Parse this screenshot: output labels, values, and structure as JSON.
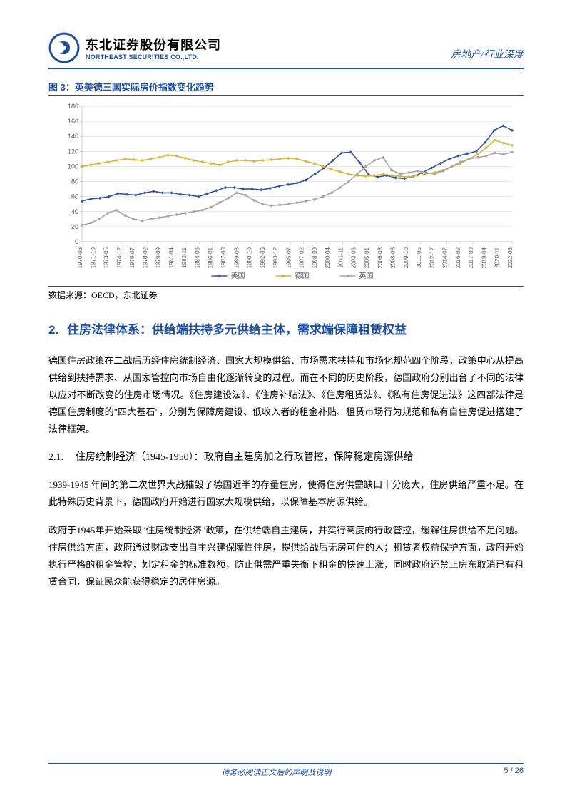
{
  "header": {
    "logo_cn": "东北证券股份有限公司",
    "logo_en": "NORTHEAST SECURITIES CO.,LTD.",
    "right": "房地产/行业深度"
  },
  "figure": {
    "title": "图 3：英美德三国实际房价指数变化趋势",
    "data_source": "数据来源：OECD，东北证券",
    "chart": {
      "type": "line",
      "ylim": [
        0,
        180
      ],
      "ytick_step": 20,
      "yticks": [
        "0",
        "20",
        "40",
        "60",
        "80",
        "100",
        "120",
        "140",
        "160",
        "180"
      ],
      "xlabels": [
        "1970-03",
        "1971-10",
        "1973-05",
        "1974-12",
        "1976-07",
        "1978-02",
        "1979-09",
        "1981-04",
        "1982-11",
        "1984-06",
        "1986-01",
        "1987-08",
        "1989-03",
        "1990-10",
        "1992-05",
        "1993-12",
        "1995-07",
        "1997-02",
        "1998-09",
        "2000-04",
        "2001-11",
        "2003-06",
        "2005-01",
        "2006-08",
        "2008-03",
        "2009-10",
        "2011-05",
        "2012-12",
        "2014-07",
        "2016-02",
        "2017-09",
        "2019-04",
        "2020-11",
        "2022-06"
      ],
      "grid_color": "#d9d9d9",
      "axis_color": "#bfbfbf",
      "background": "#ffffff",
      "series": [
        {
          "name": "美国",
          "color": "#2f5597",
          "marker": "diamond",
          "data": [
            54,
            57,
            58,
            60,
            64,
            63,
            62,
            65,
            67,
            65,
            65,
            63,
            62,
            60,
            64,
            68,
            72,
            72,
            70,
            70,
            69,
            71,
            74,
            76,
            78,
            82,
            90,
            98,
            108,
            118,
            119,
            105,
            89,
            86,
            88,
            85,
            84,
            87,
            92,
            98,
            104,
            110,
            114,
            117,
            120,
            132,
            148,
            154,
            148
          ]
        },
        {
          "name": "德国",
          "color": "#d4b83d",
          "marker": "circle",
          "data": [
            100,
            102,
            104,
            106,
            108,
            110,
            109,
            108,
            110,
            112,
            115,
            114,
            111,
            108,
            106,
            104,
            102,
            106,
            108,
            108,
            107,
            108,
            109,
            110,
            111,
            110,
            107,
            104,
            100,
            96,
            93,
            90,
            88,
            87,
            88,
            90,
            88,
            87,
            86,
            88,
            90,
            92,
            95,
            100,
            104,
            110,
            116,
            125,
            135,
            131,
            128
          ]
        },
        {
          "name": "英国",
          "color": "#a6a6a6",
          "marker": "circle",
          "data": [
            22,
            25,
            30,
            38,
            42,
            35,
            30,
            28,
            30,
            32,
            34,
            36,
            38,
            40,
            42,
            46,
            52,
            58,
            65,
            62,
            55,
            50,
            48,
            49,
            50,
            52,
            54,
            56,
            60,
            65,
            72,
            80,
            90,
            100,
            108,
            112,
            95,
            90,
            92,
            94,
            92,
            90,
            94,
            100,
            106,
            110,
            112,
            114,
            118,
            116,
            119
          ]
        }
      ],
      "legend": [
        "美国",
        "德国",
        "英国"
      ]
    }
  },
  "section": {
    "num": "2.",
    "title": "住房法律体系：供给端扶持多元供给主体，需求端保障租赁权益"
  },
  "body1": "德国住房政策在二战后历经住房统制经济、国家大规模供给、市场需求扶持和市场化规范四个阶段，政策中心从提高供给到扶持需求、从国家管控向市场自由化逐渐转变的过程。而在不同的历史阶段，德国政府分别出台了不同的法律以应对不断改变的住房市场情况。《住房建设法》、《住房补贴法》、《住房租赁法》、《私有住房促进法》这四部法律是德国住房制度的\"四大基石\"，分别为保障房建设、低收入者的租金补贴、租赁市场行为规范和私有自住房促进搭建了法律框架。",
  "subsection": {
    "num": "2.1.",
    "title": "住房统制经济（1945-1950）：政府自主建房加之行政管控，保障稳定房源供给"
  },
  "body2": "1939-1945 年间的第二次世界大战摧毁了德国近半的存量住房，使得住房供需缺口十分庞大，住房供给严重不足。在此特殊历史背景下，德国政府开始进行国家大规模供给，以保障基本房源供给。",
  "body3": "政府于1945年开始采取\"住房统制经济\"政策，在供给端自主建房，并实行高度的行政管控，缓解住房供给不足问题。住房供给方面，政府通过财政支出自主兴建保障性住房，提供给战后无房可住的人；租赁者权益保护方面，政府开始执行严格的租金管控，划定租金的标准数额，防止供需严重失衡下租金的快速上涨，同时政府还禁止房东取消已有租赁合同，保证民众能获得稳定的居住房源。",
  "footer": {
    "center": "请务必阅读正文后的声明及说明",
    "page": "5 / 26"
  },
  "colors": {
    "brand": "#1e4e9c"
  }
}
